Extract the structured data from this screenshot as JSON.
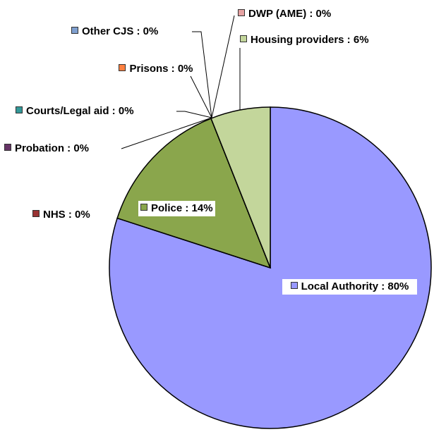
{
  "chart_data": {
    "type": "pie",
    "labels": [
      "Local Authority : 80%",
      "NHS : 0%",
      "Police : 14%",
      "Probation : 0%",
      "Courts/Legal aid : 0%",
      "Prisons : 0%",
      "Other CJS : 0%",
      "DWP (AME) : 0%",
      "Housing providers : 6%"
    ],
    "values": [
      80,
      0,
      14,
      0,
      0,
      0,
      0,
      0,
      6
    ],
    "colors": [
      "#9999ff",
      "#993333",
      "#8aa64c",
      "#663366",
      "#339999",
      "#ff8040",
      "#7f9fcf",
      "#e6a3a3",
      "#c3d69b"
    ]
  }
}
